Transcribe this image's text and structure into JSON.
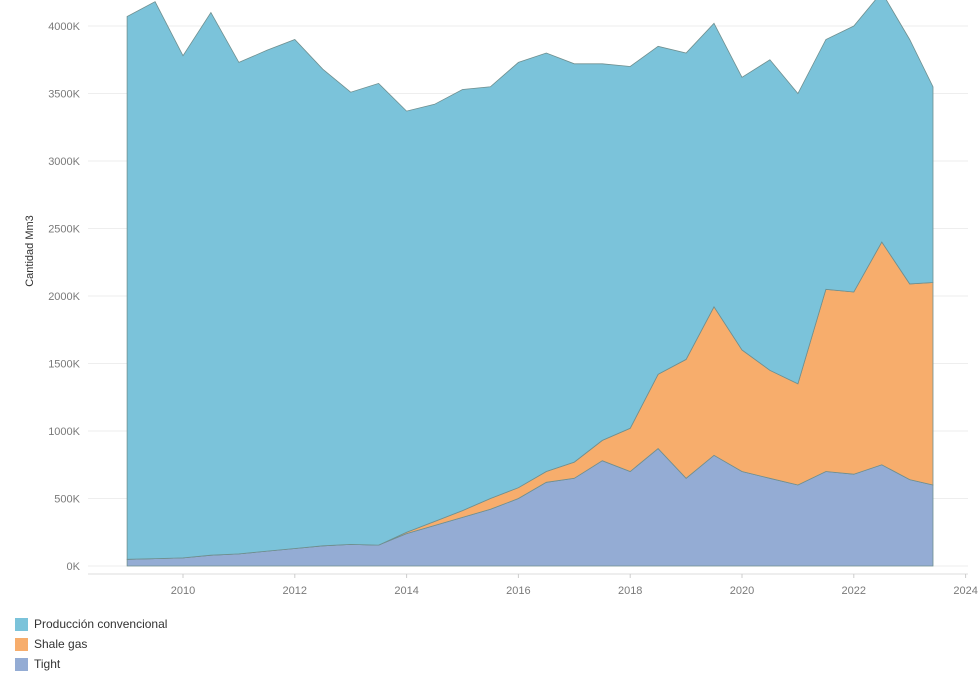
{
  "chart_data": {
    "type": "area",
    "stacked": true,
    "ylabel": "Cantidad Mm3",
    "xlabel": "",
    "ylim": [
      0,
      4200000
    ],
    "y_ticks": [
      0,
      500000,
      1000000,
      1500000,
      2000000,
      2500000,
      3000000,
      3500000,
      4000000
    ],
    "y_tick_labels": [
      "0K",
      "500K",
      "1000K",
      "1500K",
      "2000K",
      "2500K",
      "3000K",
      "3500K",
      "4000K"
    ],
    "x_ticks": [
      "2010",
      "2012",
      "2014",
      "2016",
      "2018",
      "2020",
      "2022",
      "2024"
    ],
    "x_range": [
      "2009-01",
      "2024-06"
    ],
    "legend_position": "bottom-left",
    "series_colors": [
      "#7bc3da",
      "#f7ad6c",
      "#94acd4"
    ],
    "series": [
      {
        "name": "Tight",
        "color": "#94acd4",
        "x": [
          "2009-01",
          "2009-07",
          "2010-01",
          "2010-07",
          "2011-01",
          "2011-07",
          "2012-01",
          "2012-07",
          "2013-01",
          "2013-07",
          "2014-01",
          "2014-07",
          "2015-01",
          "2015-07",
          "2016-01",
          "2016-07",
          "2017-01",
          "2017-07",
          "2018-01",
          "2018-07",
          "2019-01",
          "2019-07",
          "2020-01",
          "2020-07",
          "2021-01",
          "2021-07",
          "2022-01",
          "2022-07",
          "2023-01",
          "2023-06"
        ],
        "values": [
          50000,
          55000,
          60000,
          80000,
          90000,
          110000,
          130000,
          150000,
          160000,
          155000,
          240000,
          300000,
          360000,
          420000,
          500000,
          620000,
          650000,
          780000,
          700000,
          870000,
          650000,
          820000,
          700000,
          650000,
          600000,
          700000,
          680000,
          750000,
          640000,
          600000
        ]
      },
      {
        "name": "Shale gas",
        "color": "#f7ad6c",
        "x": [
          "2009-01",
          "2009-07",
          "2010-01",
          "2010-07",
          "2011-01",
          "2011-07",
          "2012-01",
          "2012-07",
          "2013-01",
          "2013-07",
          "2014-01",
          "2014-07",
          "2015-01",
          "2015-07",
          "2016-01",
          "2016-07",
          "2017-01",
          "2017-07",
          "2018-01",
          "2018-07",
          "2019-01",
          "2019-07",
          "2020-01",
          "2020-07",
          "2021-01",
          "2021-07",
          "2022-01",
          "2022-07",
          "2023-01",
          "2023-06"
        ],
        "values": [
          0,
          0,
          0,
          0,
          0,
          0,
          0,
          0,
          0,
          0,
          10000,
          30000,
          50000,
          80000,
          80000,
          80000,
          120000,
          150000,
          320000,
          550000,
          880000,
          1100000,
          900000,
          800000,
          750000,
          1350000,
          1350000,
          1650000,
          1450000,
          1500000
        ]
      },
      {
        "name": "Producción convencional",
        "color": "#7bc3da",
        "x": [
          "2009-01",
          "2009-07",
          "2010-01",
          "2010-07",
          "2011-01",
          "2011-07",
          "2012-01",
          "2012-07",
          "2013-01",
          "2013-07",
          "2014-01",
          "2014-07",
          "2015-01",
          "2015-07",
          "2016-01",
          "2016-07",
          "2017-01",
          "2017-07",
          "2018-01",
          "2018-07",
          "2019-01",
          "2019-07",
          "2020-01",
          "2020-07",
          "2021-01",
          "2021-07",
          "2022-01",
          "2022-07",
          "2023-01",
          "2023-06"
        ],
        "values": [
          4020000,
          4125000,
          3720000,
          4020000,
          3640000,
          3710000,
          3770000,
          3530000,
          3350000,
          3420000,
          3120000,
          3090000,
          3120000,
          3050000,
          3150000,
          3100000,
          2950000,
          2790000,
          2680000,
          2430000,
          2270000,
          2100000,
          2020000,
          2300000,
          2150000,
          1850000,
          1970000,
          1850000,
          1810000,
          1450000
        ]
      }
    ]
  },
  "legend": {
    "items": [
      {
        "label": "Producción convencional",
        "color": "#7bc3da"
      },
      {
        "label": "Shale gas",
        "color": "#f7ad6c"
      },
      {
        "label": "Tight",
        "color": "#94acd4"
      }
    ]
  }
}
